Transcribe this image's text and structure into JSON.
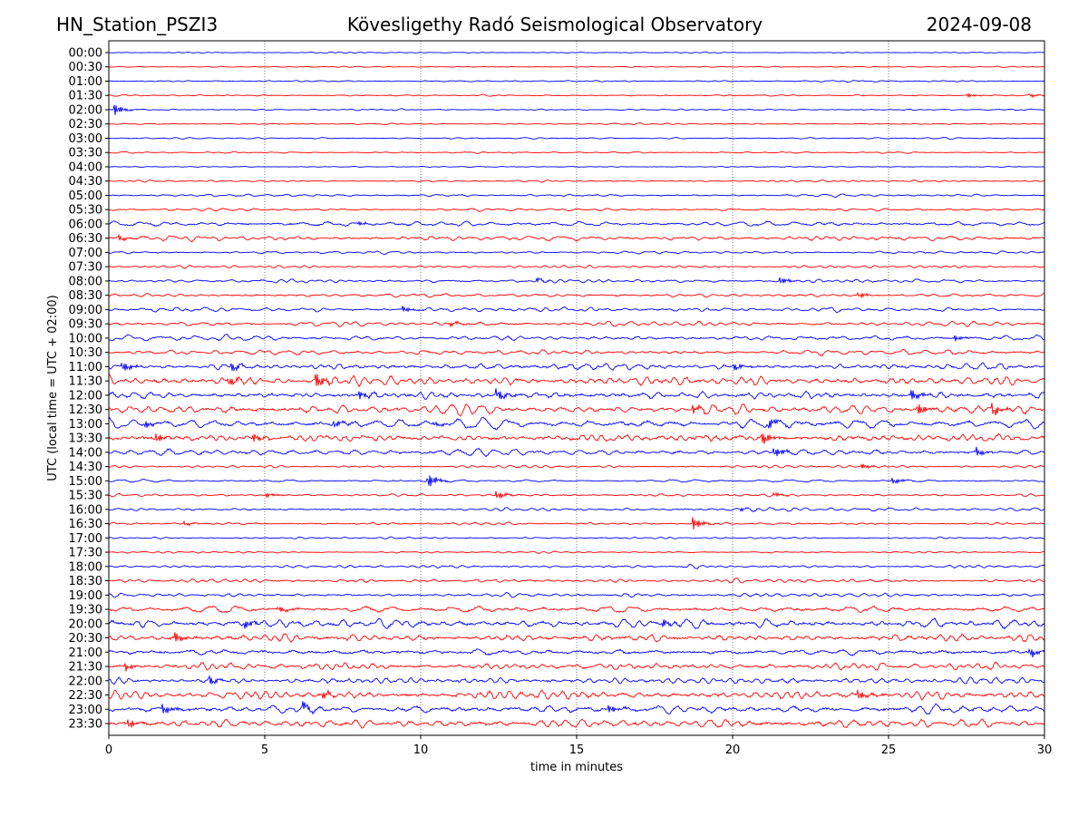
{
  "chart_data": {
    "type": "line",
    "title_left": "HN_Station_PSZI3",
    "title": "Kövesligethy Radó Seismological Observatory",
    "title_right": "2024-09-08",
    "xlabel": "time in minutes",
    "ylabel": "UTC (local time = UTC + 02:00)",
    "xlim": [
      0,
      30
    ],
    "xticks": [
      "0",
      "5",
      "10",
      "15",
      "20",
      "25",
      "30"
    ],
    "grid": "vertical dotted at 5-minute intervals",
    "colors": [
      "#0000ff",
      "#ff0000"
    ],
    "rows": [
      {
        "label": "00:00",
        "noise": 0.03,
        "events": []
      },
      {
        "label": "00:30",
        "noise": 0.03,
        "events": []
      },
      {
        "label": "01:00",
        "noise": 0.05,
        "events": []
      },
      {
        "label": "01:30",
        "noise": 0.05,
        "events": [
          [
            27.5,
            0.15
          ],
          [
            29.5,
            0.15
          ]
        ]
      },
      {
        "label": "02:00",
        "noise": 0.05,
        "events": [
          [
            0.15,
            0.45
          ]
        ]
      },
      {
        "label": "02:30",
        "noise": 0.04,
        "events": []
      },
      {
        "label": "03:00",
        "noise": 0.05,
        "events": []
      },
      {
        "label": "03:30",
        "noise": 0.05,
        "events": []
      },
      {
        "label": "04:00",
        "noise": 0.04,
        "events": []
      },
      {
        "label": "04:30",
        "noise": 0.06,
        "events": []
      },
      {
        "label": "05:00",
        "noise": 0.08,
        "events": []
      },
      {
        "label": "05:30",
        "noise": 0.1,
        "events": []
      },
      {
        "label": "06:00",
        "noise": 0.15,
        "events": [
          [
            8,
            0.15
          ]
        ]
      },
      {
        "label": "06:30",
        "noise": 0.15,
        "events": [
          [
            0.3,
            0.25
          ]
        ]
      },
      {
        "label": "07:00",
        "noise": 0.08,
        "events": []
      },
      {
        "label": "07:30",
        "noise": 0.08,
        "events": []
      },
      {
        "label": "08:00",
        "noise": 0.1,
        "events": [
          [
            21.5,
            0.3
          ],
          [
            13.7,
            0.15
          ]
        ]
      },
      {
        "label": "08:30",
        "noise": 0.12,
        "events": [
          [
            24,
            0.2
          ]
        ]
      },
      {
        "label": "09:00",
        "noise": 0.12,
        "events": [
          [
            9.4,
            0.25
          ]
        ]
      },
      {
        "label": "09:30",
        "noise": 0.13,
        "events": [
          [
            10.9,
            0.2
          ]
        ]
      },
      {
        "label": "10:00",
        "noise": 0.15,
        "events": [
          [
            27.1,
            0.25
          ]
        ]
      },
      {
        "label": "10:30",
        "noise": 0.15,
        "events": []
      },
      {
        "label": "11:00",
        "noise": 0.2,
        "events": [
          [
            0.4,
            0.4
          ],
          [
            3.9,
            0.35
          ],
          [
            20,
            0.3
          ]
        ]
      },
      {
        "label": "11:30",
        "noise": 0.25,
        "events": [
          [
            6.6,
            0.6
          ],
          [
            3.8,
            0.35
          ]
        ]
      },
      {
        "label": "12:00",
        "noise": 0.25,
        "events": [
          [
            12.4,
            0.45
          ],
          [
            25.7,
            0.45
          ],
          [
            8,
            0.3
          ]
        ]
      },
      {
        "label": "12:30",
        "noise": 0.25,
        "events": [
          [
            25.9,
            0.5
          ],
          [
            28.3,
            0.5
          ],
          [
            18.7,
            0.3
          ]
        ]
      },
      {
        "label": "13:00",
        "noise": 0.25,
        "events": [
          [
            21.1,
            0.45
          ],
          [
            10.4,
            0.2
          ],
          [
            1.1,
            0.3
          ],
          [
            7.2,
            0.3
          ]
        ]
      },
      {
        "label": "13:30",
        "noise": 0.25,
        "events": [
          [
            20.9,
            0.55
          ],
          [
            1.5,
            0.35
          ],
          [
            4.6,
            0.35
          ]
        ]
      },
      {
        "label": "14:00",
        "noise": 0.2,
        "events": [
          [
            21.3,
            0.45
          ],
          [
            27.8,
            0.3
          ]
        ]
      },
      {
        "label": "14:30",
        "noise": 0.08,
        "events": [
          [
            24.1,
            0.2
          ]
        ]
      },
      {
        "label": "15:00",
        "noise": 0.08,
        "events": [
          [
            10.2,
            0.6
          ],
          [
            25.1,
            0.25
          ]
        ]
      },
      {
        "label": "15:30",
        "noise": 0.08,
        "events": [
          [
            12.4,
            0.35
          ],
          [
            5,
            0.2
          ],
          [
            21.3,
            0.2
          ]
        ]
      },
      {
        "label": "16:00",
        "noise": 0.1,
        "events": [
          [
            20.2,
            0.15
          ]
        ]
      },
      {
        "label": "16:30",
        "noise": 0.08,
        "events": [
          [
            18.7,
            0.5
          ],
          [
            2.4,
            0.15
          ]
        ]
      },
      {
        "label": "17:00",
        "noise": 0.06,
        "events": []
      },
      {
        "label": "17:30",
        "noise": 0.06,
        "events": []
      },
      {
        "label": "18:00",
        "noise": 0.1,
        "events": []
      },
      {
        "label": "18:30",
        "noise": 0.12,
        "events": []
      },
      {
        "label": "19:00",
        "noise": 0.12,
        "events": []
      },
      {
        "label": "19:30",
        "noise": 0.2,
        "events": [
          [
            5.4,
            0.3
          ]
        ]
      },
      {
        "label": "20:00",
        "noise": 0.25,
        "events": [
          [
            17.7,
            0.4
          ],
          [
            4.3,
            0.35
          ]
        ]
      },
      {
        "label": "20:30",
        "noise": 0.25,
        "events": [
          [
            2.1,
            0.4
          ]
        ]
      },
      {
        "label": "21:00",
        "noise": 0.22,
        "events": [
          [
            29.5,
            0.4
          ]
        ]
      },
      {
        "label": "21:30",
        "noise": 0.2,
        "events": [
          [
            0.5,
            0.3
          ]
        ]
      },
      {
        "label": "22:00",
        "noise": 0.2,
        "events": [
          [
            3.2,
            0.3
          ]
        ]
      },
      {
        "label": "22:30",
        "noise": 0.25,
        "events": [
          [
            24,
            0.4
          ],
          [
            6.8,
            0.35
          ]
        ]
      },
      {
        "label": "23:00",
        "noise": 0.25,
        "events": [
          [
            1.7,
            0.4
          ],
          [
            16,
            0.35
          ],
          [
            6.2,
            0.35
          ]
        ]
      },
      {
        "label": "23:30",
        "noise": 0.25,
        "events": [
          [
            0.6,
            0.35
          ]
        ]
      }
    ]
  }
}
